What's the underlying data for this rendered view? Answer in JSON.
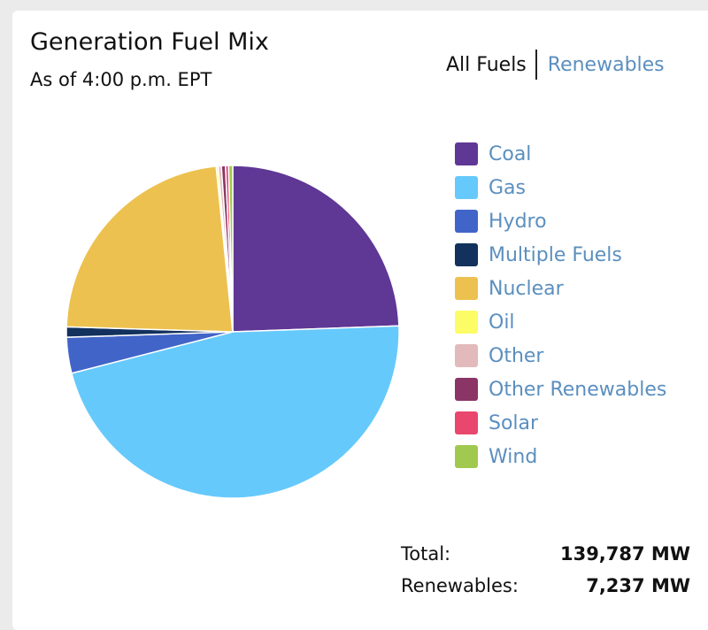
{
  "chart_data": {
    "type": "pie",
    "title": "Generation Fuel Mix",
    "subtitle": "As of 4:00 p.m. EPT",
    "tabs": [
      {
        "label": "All Fuels",
        "active": true
      },
      {
        "label": "Renewables",
        "active": false
      }
    ],
    "slices": [
      {
        "name": "Coal",
        "value": 24.5,
        "color": "#5f3795"
      },
      {
        "name": "Gas",
        "value": 46.7,
        "color": "#66c9fb"
      },
      {
        "name": "Hydro",
        "value": 3.5,
        "color": "#4164c8"
      },
      {
        "name": "Multiple Fuels",
        "value": 1.0,
        "color": "#13315d"
      },
      {
        "name": "Nuclear",
        "value": 23.0,
        "color": "#edc14f"
      },
      {
        "name": "Oil",
        "value": 0.2,
        "color": "#fcfc66"
      },
      {
        "name": "Other",
        "value": 0.3,
        "color": "#e2babb"
      },
      {
        "name": "Other Renewables",
        "value": 0.4,
        "color": "#8a3566"
      },
      {
        "name": "Solar",
        "value": 0.3,
        "color": "#e9476d"
      },
      {
        "name": "Wind",
        "value": 0.4,
        "color": "#a2c94f"
      }
    ],
    "legend_position": "right"
  },
  "totals": {
    "total_label": "Total:",
    "total_value": "139,787 MW",
    "renewables_label": "Renewables:",
    "renewables_value": "7,237 MW"
  }
}
